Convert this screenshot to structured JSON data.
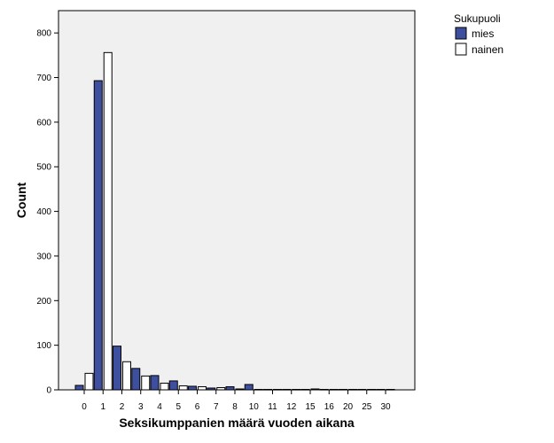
{
  "chart_data": {
    "type": "bar",
    "title": "",
    "xlabel": "Seksikumppanien määrä vuoden aikana",
    "ylabel": "Count",
    "categories": [
      "0",
      "1",
      "2",
      "3",
      "4",
      "5",
      "6",
      "7",
      "8",
      "10",
      "11",
      "12",
      "15",
      "16",
      "20",
      "25",
      "30"
    ],
    "series": [
      {
        "name": "mies",
        "color": "#3f4f9f",
        "values": [
          10,
          693,
          98,
          48,
          32,
          20,
          8,
          4,
          7,
          12,
          1,
          1,
          1,
          1,
          1,
          1,
          1
        ]
      },
      {
        "name": "nainen",
        "color": "#ffffff",
        "values": [
          37,
          756,
          63,
          31,
          15,
          9,
          7,
          5,
          2,
          1,
          1,
          1,
          2,
          1,
          1,
          1,
          1
        ]
      }
    ],
    "ylim": [
      0,
      850
    ],
    "yticks": [
      0,
      100,
      200,
      300,
      400,
      500,
      600,
      700,
      800
    ],
    "grid": false,
    "plot_background": "#f0f0f0",
    "legend": {
      "title": "Sukupuoli",
      "position": "top-right outside"
    }
  }
}
